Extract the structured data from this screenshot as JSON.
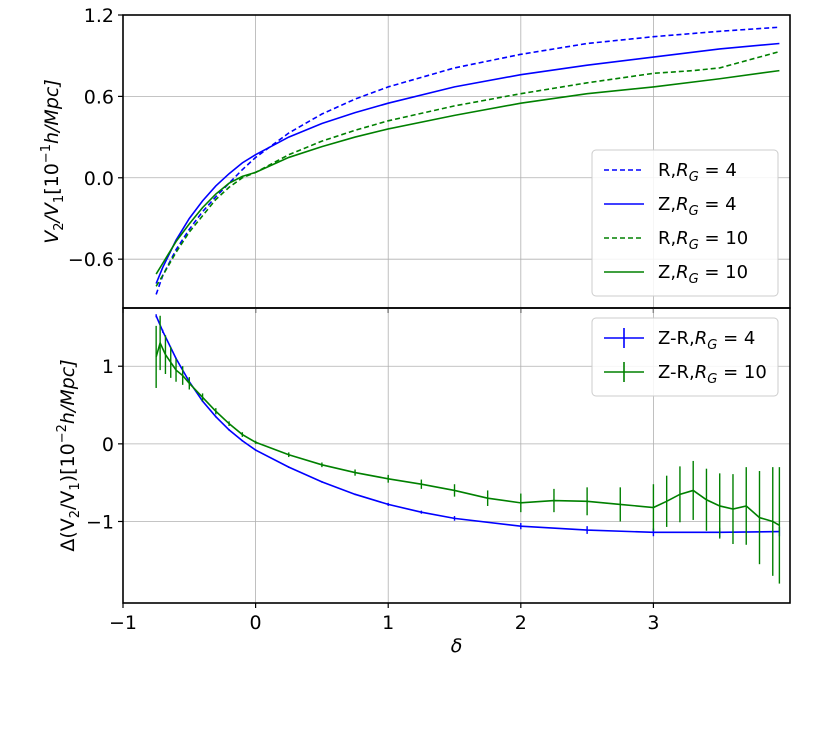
{
  "chart_data": [
    {
      "type": "line",
      "panel": "top",
      "ylabel_parts": [
        "V",
        "2",
        "/V",
        "1",
        "[10",
        "−1",
        "h/Mpc]"
      ],
      "ylabel": "V_2/V_1[10^{-1}h/Mpc]",
      "xlim": [
        -1.0,
        4.03
      ],
      "ylim": [
        -0.96,
        1.2
      ],
      "yticks": [
        -0.6,
        0.0,
        0.6,
        1.2
      ],
      "ytick_labels": [
        "−0.6",
        "0.0",
        "0.6",
        "1.2"
      ],
      "xticks": [
        -1,
        0,
        1,
        2,
        3
      ],
      "grid": true,
      "legend_position": "lower-right",
      "series": [
        {
          "name": "R,R_G = 4",
          "legend_prefix": "R,",
          "legend_sub": "G",
          "legend_value": "4",
          "color": "#0000ff",
          "dash": "dashed",
          "x": [
            -0.75,
            -0.7,
            -0.6,
            -0.5,
            -0.4,
            -0.3,
            -0.2,
            -0.1,
            0.0,
            0.25,
            0.5,
            0.75,
            1.0,
            1.5,
            2.0,
            2.5,
            3.0,
            3.5,
            3.95
          ],
          "y": [
            -0.86,
            -0.72,
            -0.53,
            -0.38,
            -0.25,
            -0.14,
            -0.04,
            0.06,
            0.15,
            0.33,
            0.47,
            0.58,
            0.67,
            0.81,
            0.91,
            0.99,
            1.04,
            1.08,
            1.11
          ]
        },
        {
          "name": "Z,R_G = 4",
          "legend_prefix": "Z,",
          "legend_sub": "G",
          "legend_value": "4",
          "color": "#0000ff",
          "dash": "solid",
          "x": [
            -0.75,
            -0.7,
            -0.6,
            -0.5,
            -0.4,
            -0.3,
            -0.2,
            -0.1,
            0.0,
            0.25,
            0.5,
            0.75,
            1.0,
            1.5,
            2.0,
            2.5,
            3.0,
            3.5,
            3.95
          ],
          "y": [
            -0.78,
            -0.66,
            -0.46,
            -0.3,
            -0.17,
            -0.06,
            0.03,
            0.11,
            0.17,
            0.3,
            0.4,
            0.48,
            0.55,
            0.67,
            0.76,
            0.83,
            0.89,
            0.95,
            0.99
          ]
        },
        {
          "name": "R,R_G = 10",
          "legend_prefix": "R,",
          "legend_sub": "G",
          "legend_value": "10",
          "color": "#008000",
          "dash": "dashed",
          "x": [
            -0.75,
            -0.7,
            -0.6,
            -0.5,
            -0.4,
            -0.3,
            -0.2,
            -0.1,
            0.0,
            0.25,
            0.5,
            0.75,
            1.0,
            1.5,
            2.0,
            2.5,
            3.0,
            3.3,
            3.5,
            3.95
          ],
          "y": [
            -0.8,
            -0.72,
            -0.55,
            -0.4,
            -0.28,
            -0.16,
            -0.07,
            0.0,
            0.04,
            0.17,
            0.27,
            0.35,
            0.42,
            0.53,
            0.62,
            0.7,
            0.77,
            0.79,
            0.81,
            0.93
          ]
        },
        {
          "name": "Z,R_G = 10",
          "legend_prefix": "Z,",
          "legend_sub": "G",
          "legend_value": "10",
          "color": "#008000",
          "dash": "solid",
          "x": [
            -0.75,
            -0.7,
            -0.6,
            -0.5,
            -0.4,
            -0.3,
            -0.2,
            -0.1,
            0.0,
            0.25,
            0.5,
            0.75,
            1.0,
            1.5,
            2.0,
            2.5,
            3.0,
            3.5,
            3.95
          ],
          "y": [
            -0.71,
            -0.63,
            -0.47,
            -0.34,
            -0.22,
            -0.12,
            -0.04,
            0.01,
            0.04,
            0.15,
            0.23,
            0.3,
            0.36,
            0.46,
            0.55,
            0.62,
            0.67,
            0.73,
            0.79
          ]
        }
      ]
    },
    {
      "type": "line",
      "panel": "bottom",
      "ylabel_parts": [
        "Δ(V",
        "2",
        "/V",
        "1",
        ")[10",
        "−2",
        "h/Mpc]"
      ],
      "ylabel": "Δ(V_2/V_1)[10^{-2}h/Mpc]",
      "xlabel": "δ",
      "xlim": [
        -1.0,
        4.03
      ],
      "ylim": [
        -2.05,
        1.75
      ],
      "yticks": [
        -1,
        0,
        1
      ],
      "ytick_labels": [
        "−1",
        "0",
        "1"
      ],
      "xticks": [
        -1,
        0,
        1,
        2,
        3
      ],
      "xtick_labels": [
        "−1",
        "0",
        "1",
        "2",
        "3"
      ],
      "grid": true,
      "legend_position": "upper-right",
      "series": [
        {
          "name": "Z-R,R_G = 4",
          "legend_prefix": "Z-R,",
          "legend_sub": "G",
          "legend_value": "4",
          "color": "#0000ff",
          "x": [
            -0.75,
            -0.7,
            -0.6,
            -0.5,
            -0.4,
            -0.3,
            -0.2,
            -0.1,
            0.0,
            0.25,
            0.5,
            0.75,
            1.0,
            1.25,
            1.5,
            2.0,
            2.5,
            3.0,
            3.5,
            3.95
          ],
          "y": [
            1.65,
            1.45,
            1.1,
            0.8,
            0.55,
            0.35,
            0.18,
            0.04,
            -0.08,
            -0.3,
            -0.49,
            -0.65,
            -0.78,
            -0.88,
            -0.96,
            -1.06,
            -1.11,
            -1.14,
            -1.14,
            -1.13
          ],
          "err": [
            0.02,
            0.02,
            0.01,
            0.01,
            0.01,
            0.01,
            0.01,
            0.01,
            0.01,
            0.01,
            0.01,
            0.01,
            0.02,
            0.02,
            0.03,
            0.04,
            0.05,
            0.05,
            0.06,
            0.06
          ]
        },
        {
          "name": "Z-R,R_G = 10",
          "legend_prefix": "Z-R,",
          "legend_sub": "G",
          "legend_value": "10",
          "color": "#008000",
          "x": [
            -0.75,
            -0.72,
            -0.68,
            -0.64,
            -0.6,
            -0.55,
            -0.5,
            -0.4,
            -0.3,
            -0.2,
            -0.1,
            0.0,
            0.25,
            0.5,
            0.75,
            1.0,
            1.25,
            1.5,
            1.75,
            2.0,
            2.25,
            2.5,
            2.75,
            3.0,
            3.1,
            3.2,
            3.3,
            3.4,
            3.5,
            3.6,
            3.7,
            3.8,
            3.9,
            3.95
          ],
          "y": [
            1.12,
            1.3,
            1.15,
            1.05,
            0.95,
            0.88,
            0.78,
            0.6,
            0.42,
            0.26,
            0.12,
            0.02,
            -0.14,
            -0.27,
            -0.37,
            -0.45,
            -0.52,
            -0.6,
            -0.7,
            -0.76,
            -0.73,
            -0.74,
            -0.78,
            -0.82,
            -0.74,
            -0.65,
            -0.6,
            -0.72,
            -0.8,
            -0.84,
            -0.8,
            -0.95,
            -1.0,
            -1.05
          ],
          "err": [
            0.4,
            0.35,
            0.25,
            0.2,
            0.15,
            0.12,
            0.08,
            0.05,
            0.04,
            0.03,
            0.03,
            0.02,
            0.03,
            0.03,
            0.04,
            0.05,
            0.06,
            0.08,
            0.1,
            0.12,
            0.15,
            0.18,
            0.22,
            0.3,
            0.33,
            0.36,
            0.38,
            0.4,
            0.42,
            0.45,
            0.5,
            0.6,
            0.7,
            0.75
          ]
        }
      ]
    }
  ]
}
